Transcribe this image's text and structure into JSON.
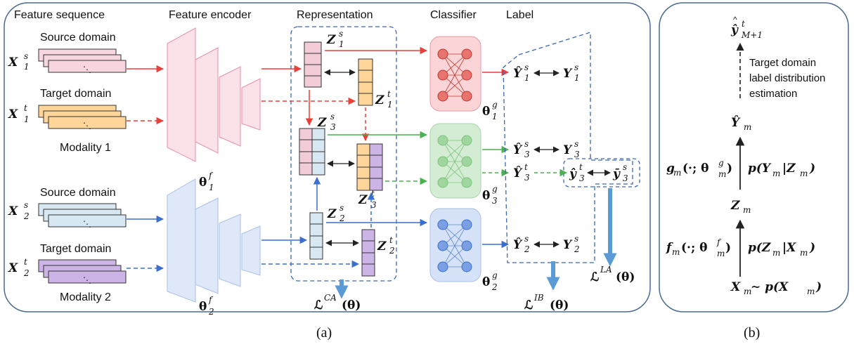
{
  "panel_a": {
    "headers": {
      "feature_sequence": "Feature sequence",
      "feature_encoder": "Feature encoder",
      "representation": "Representation",
      "classifier": "Classifier",
      "label": "Label"
    },
    "domains": {
      "source_1": "Source domain",
      "target_1": "Target domain",
      "source_2": "Source domain",
      "target_2": "Target domain"
    },
    "modalities": {
      "m1": "Modality 1",
      "m2": "Modality 2"
    },
    "inputs": {
      "x1s": "X",
      "x1s_sup": "s",
      "x1s_sub": "1",
      "x1t": "X",
      "x1t_sup": "t",
      "x1t_sub": "1",
      "x2s": "X",
      "x2s_sup": "s",
      "x2s_sub": "2",
      "x2t": "X",
      "x2t_sup": "t",
      "x2t_sub": "2"
    },
    "params": {
      "enc1": "θ",
      "enc1_sup": "f",
      "enc1_sub": "1",
      "enc2": "θ",
      "enc2_sup": "f",
      "enc2_sub": "2",
      "cls1": "θ",
      "cls1_sup": "g",
      "cls1_sub": "1",
      "cls3": "θ",
      "cls3_sup": "g",
      "cls3_sub": "3",
      "cls2": "θ",
      "cls2_sup": "g",
      "cls2_sub": "2"
    },
    "reps": {
      "z1s": "Z",
      "z1s_sup": "s",
      "z1s_sub": "1",
      "z1t": "Z",
      "z1t_sup": "t",
      "z1t_sub": "1",
      "z3s": "Z",
      "z3s_sup": "s",
      "z3s_sub": "3",
      "z3t": "Z",
      "z3t_sup": "t",
      "z3t_sub": "3",
      "z2s": "Z",
      "z2s_sup": "s",
      "z2s_sub": "2",
      "z2t": "Z",
      "z2t_sup": "t",
      "z2t_sub": "2"
    },
    "labels": {
      "y1s_hat": "Ŷ",
      "y1s": "Y",
      "y3s_hat": "Ŷ",
      "y3s": "Y",
      "y3t_hat": "Ŷ",
      "y3t_small_hat": "ŷ",
      "y3s_bar": "ȳ",
      "y2s_hat": "Ŷ",
      "y2s": "Y"
    },
    "losses": {
      "ca": "ℒ",
      "ca_sup": "CA",
      "ca_arg": "(θ)",
      "ib": "ℒ",
      "ib_sup": "IB",
      "ib_arg": "(θ)",
      "la": "ℒ",
      "la_sup": "LA",
      "la_arg": "(θ)"
    },
    "caption": "(a)",
    "colors": {
      "red": "#e8403a",
      "green": "#4caf50",
      "blue": "#3a6fd0",
      "pink_fill": "#f7d6df",
      "orange_fill": "#ffd59a",
      "lightblue_fill": "#d7e8f2",
      "purple_fill": "#cdb4e6",
      "dash_border": "#3a68b5",
      "loss_arrow": "#5b9bd5"
    }
  },
  "panel_b": {
    "y_hat_top": "ŷ",
    "y_hat_top_sup": "t",
    "y_hat_top_sub": "M+1",
    "note_line1": "Target domain",
    "note_line2": "label distribution",
    "note_line3": "estimation",
    "y_hat_m": "Ŷ",
    "y_hat_m_sub": "m",
    "g_func": "g",
    "g_func_rest": "(·; θ",
    "g_sup": "g",
    "g_sub": "m",
    "g_close": ")",
    "p_y_given_z": "p(Y",
    "p_y_sub": "m",
    "p_y_mid": "|Z",
    "p_y_sub2": "m",
    "p_y_close": ")",
    "z_m": "Z",
    "z_m_sub": "m",
    "f_func": "f",
    "f_func_rest": "(·; θ",
    "f_sup": "f",
    "f_sub": "m",
    "f_close": ")",
    "p_z_given_x": "p(Z",
    "p_z_sub": "m",
    "p_z_mid": "|X",
    "p_z_sub2": "m",
    "p_z_close": ")",
    "x_m": "X",
    "x_m_sub": "m",
    "x_m_rest": " ∼ p(X",
    "x_m_sub2": "m",
    "x_m_close": ")",
    "caption": "(b)"
  }
}
